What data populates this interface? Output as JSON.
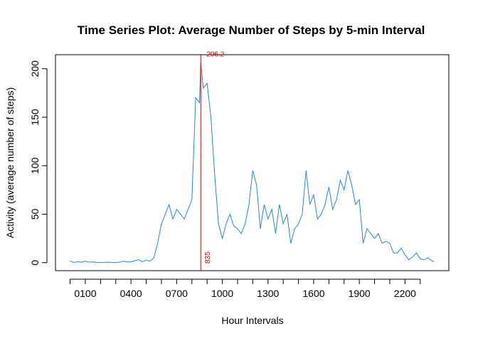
{
  "chart_data": {
    "type": "line",
    "title": "Time Series Plot: Average Number of Steps by 5-min Interval",
    "x_label": "Hour Intervals",
    "y_label": "Activity (average number of steps)",
    "x": [
      0,
      0.25,
      0.5,
      0.75,
      1,
      1.25,
      1.5,
      1.75,
      2,
      2.25,
      2.5,
      2.75,
      3,
      3.25,
      3.5,
      3.75,
      4,
      4.25,
      4.5,
      4.75,
      5,
      5.25,
      5.5,
      5.75,
      6,
      6.25,
      6.5,
      6.75,
      7,
      7.25,
      7.5,
      7.75,
      8,
      8.25,
      8.5,
      8.5833,
      8.75,
      9,
      9.25,
      9.5,
      9.75,
      10,
      10.25,
      10.5,
      10.75,
      11,
      11.25,
      11.5,
      11.75,
      12,
      12.25,
      12.5,
      12.75,
      13,
      13.25,
      13.5,
      13.75,
      14,
      14.25,
      14.5,
      14.75,
      15,
      15.25,
      15.5,
      15.75,
      16,
      16.25,
      16.5,
      16.75,
      17,
      17.25,
      17.5,
      17.75,
      18,
      18.25,
      18.5,
      18.75,
      19,
      19.25,
      19.5,
      19.75,
      20,
      20.25,
      20.5,
      20.75,
      21,
      21.25,
      21.5,
      21.75,
      22,
      22.25,
      22.5,
      22.75,
      23,
      23.25,
      23.5,
      23.75,
      23.9167
    ],
    "series": [
      {
        "color": "#1e88e5",
        "values": [
          1.7,
          0.3,
          1.0,
          0.5,
          1.5,
          0.5,
          0.8,
          0.3,
          0.2,
          0.3,
          0.5,
          0.2,
          0.1,
          0.5,
          1.5,
          0.8,
          0.8,
          2,
          3,
          1,
          2.5,
          1.5,
          5,
          20,
          40,
          50,
          60,
          45,
          55,
          50,
          45,
          55,
          65,
          170,
          165,
          206.2,
          180,
          185,
          150,
          90,
          40,
          25,
          40,
          50,
          38,
          35,
          30,
          40,
          60,
          95,
          80,
          35,
          60,
          45,
          55,
          30,
          60,
          40,
          50,
          20,
          35,
          40,
          50,
          95,
          60,
          70,
          45,
          50,
          60,
          78,
          55,
          65,
          85,
          75,
          95,
          80,
          60,
          65,
          20,
          35,
          30,
          25,
          30,
          20,
          22,
          20,
          10,
          10,
          15,
          8,
          3,
          6,
          10,
          4,
          3,
          5,
          2,
          1
        ]
      }
    ],
    "xlim": [
      -0.96,
      24.88
    ],
    "ylim": [
      -8.25,
      214.45
    ],
    "xticks": [
      {
        "value": 1,
        "label": "0100"
      },
      {
        "value": 4,
        "label": "0400"
      },
      {
        "value": 7,
        "label": "0700"
      },
      {
        "value": 10,
        "label": "1000"
      },
      {
        "value": 13,
        "label": "1300"
      },
      {
        "value": 16,
        "label": "1600"
      },
      {
        "value": 19,
        "label": "1900"
      },
      {
        "value": 22,
        "label": "2200"
      }
    ],
    "xminor_ticks": [
      0,
      2,
      3,
      5,
      6,
      8,
      9,
      11,
      12,
      14,
      15,
      17,
      18,
      20,
      21,
      23
    ],
    "yticks": [
      0,
      50,
      100,
      150,
      200
    ],
    "vline": {
      "x": 8.5833,
      "color": "#e00000"
    },
    "annotations": [
      {
        "text": "206.2",
        "y": 206.2
      },
      {
        "text": "835"
      }
    ]
  }
}
